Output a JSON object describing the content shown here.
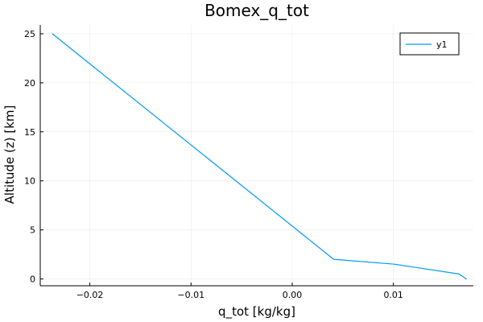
{
  "chart_data": {
    "type": "line",
    "title": "Bomex_q_tot",
    "xlabel": "q_tot [kg/kg]",
    "ylabel": "Altitude (z) [km]",
    "xlim": [
      -0.0249,
      0.0179
    ],
    "ylim": [
      -0.7,
      25.9
    ],
    "xticks": [
      -0.02,
      -0.01,
      0.0,
      0.01
    ],
    "xtick_labels": [
      "−0.02",
      "−0.01",
      "0.00",
      "0.01"
    ],
    "yticks": [
      0,
      5,
      10,
      15,
      20,
      25
    ],
    "ytick_labels": [
      "0",
      "5",
      "10",
      "15",
      "20",
      "25"
    ],
    "grid": true,
    "legend_position": "top-right",
    "series": [
      {
        "name": "y1",
        "color": "#009AFA",
        "x": [
          -0.0237,
          0.0041,
          0.0101,
          0.0165,
          0.0172
        ],
        "y": [
          25.0,
          2.0,
          1.5,
          0.5,
          0.0
        ]
      }
    ]
  }
}
